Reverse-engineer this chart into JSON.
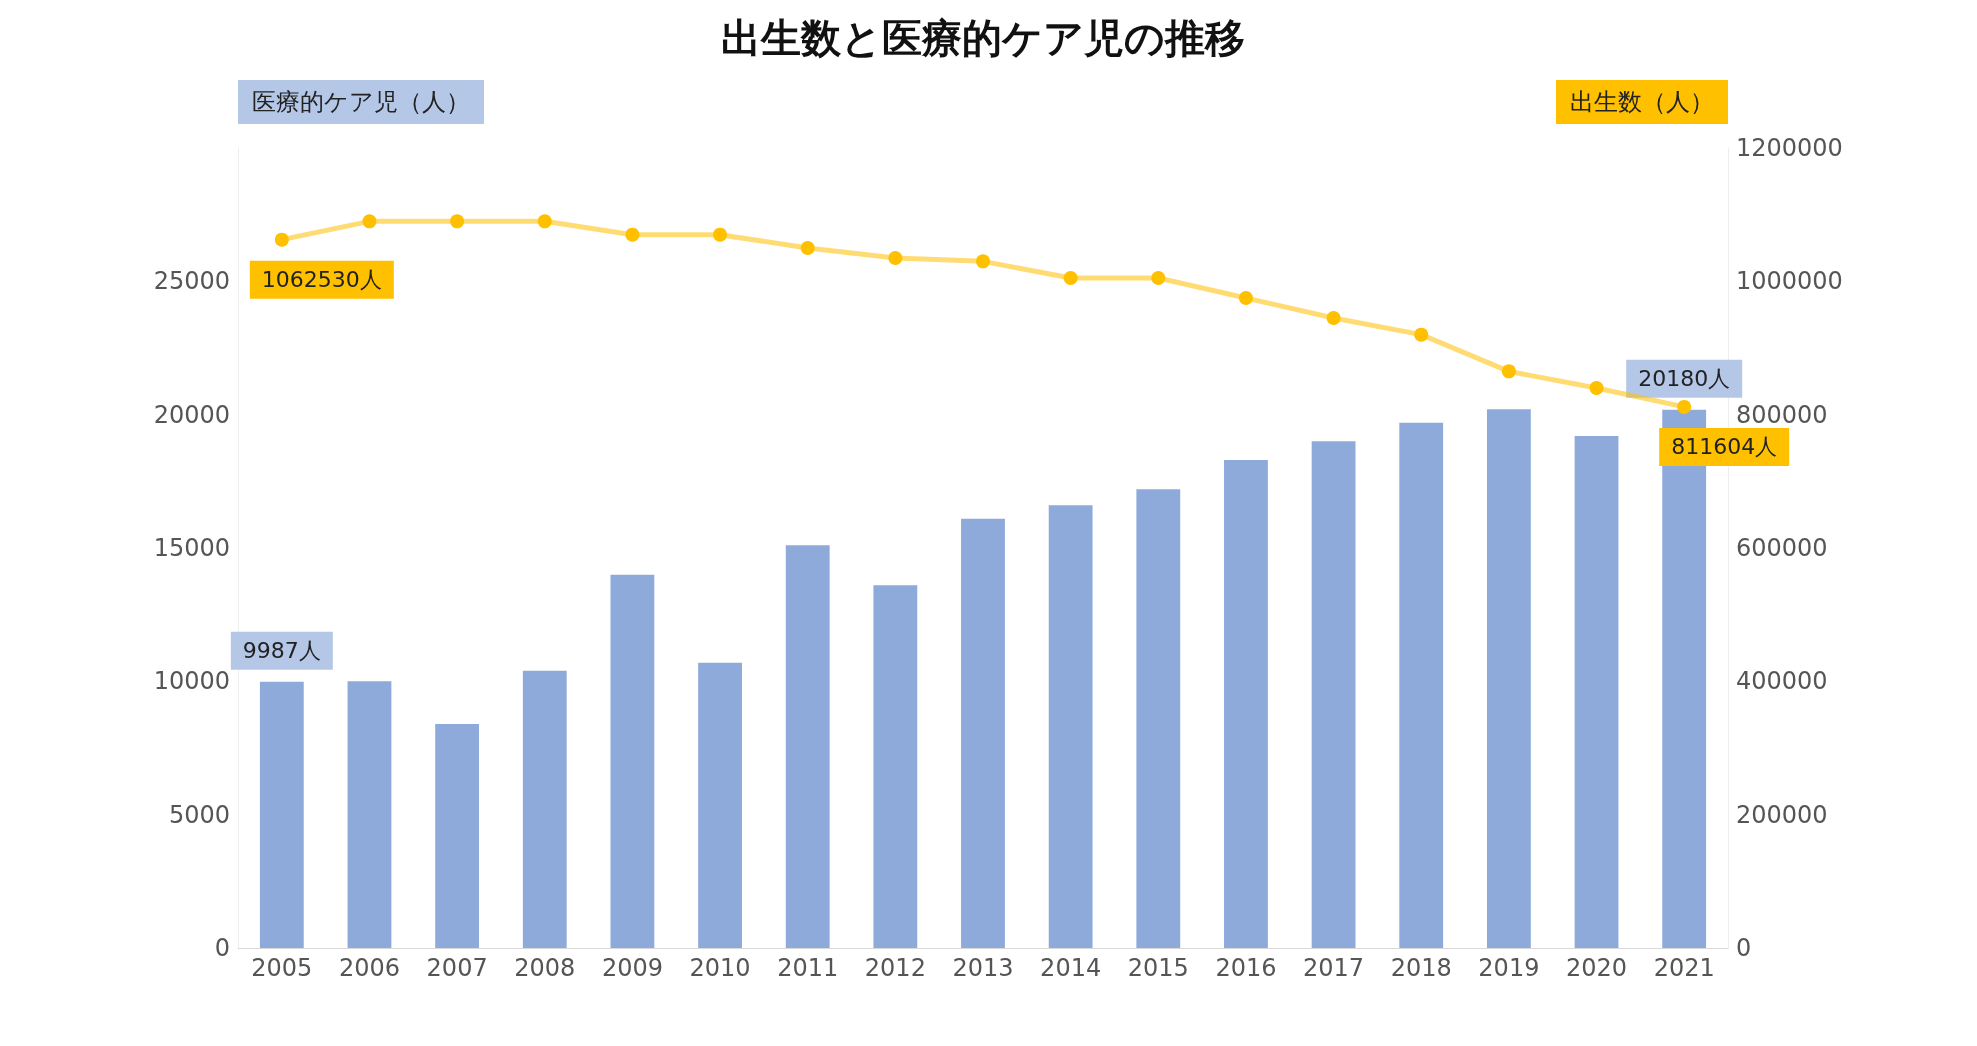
{
  "chart_data": {
    "type": "bar",
    "title": "出生数と医療的ケア児の推移",
    "ylabel": "医療的ケア児（人）",
    "y2label": "出生数（人）",
    "categories": [
      "2005",
      "2006",
      "2007",
      "2008",
      "2009",
      "2010",
      "2011",
      "2012",
      "2013",
      "2014",
      "2015",
      "2016",
      "2017",
      "2018",
      "2019",
      "2020",
      "2021"
    ],
    "series": [
      {
        "type": "bar",
        "color": "#8eaadb",
        "values": [
          9987,
          10000,
          8400,
          10400,
          14000,
          10700,
          15100,
          13600,
          16100,
          16600,
          17200,
          18300,
          19000,
          19700,
          20200,
          19200,
          20180
        ],
        "value_labels": [
          "9987人",
          null,
          null,
          null,
          null,
          null,
          null,
          null,
          null,
          null,
          null,
          null,
          null,
          null,
          null,
          null,
          "20180人"
        ]
      },
      {
        "type": "line",
        "axis": "y2",
        "color": "#ffc000",
        "marker": "circle",
        "values": [
          1062530,
          1090000,
          1090000,
          1090000,
          1070000,
          1070000,
          1050000,
          1035000,
          1030000,
          1005000,
          1005000,
          975000,
          945000,
          920000,
          865000,
          840000,
          811604
        ],
        "value_labels": [
          "1062530人",
          null,
          null,
          null,
          null,
          null,
          null,
          null,
          null,
          null,
          null,
          null,
          null,
          null,
          null,
          null,
          "811604人"
        ]
      }
    ],
    "ylim": [
      0,
      30000
    ],
    "yticks": [
      0,
      5000,
      10000,
      15000,
      20000,
      25000
    ],
    "y2lim": [
      0,
      1200000
    ],
    "y2ticks": [
      0,
      200000,
      400000,
      600000,
      800000,
      1000000,
      1200000
    ],
    "grid": false
  }
}
